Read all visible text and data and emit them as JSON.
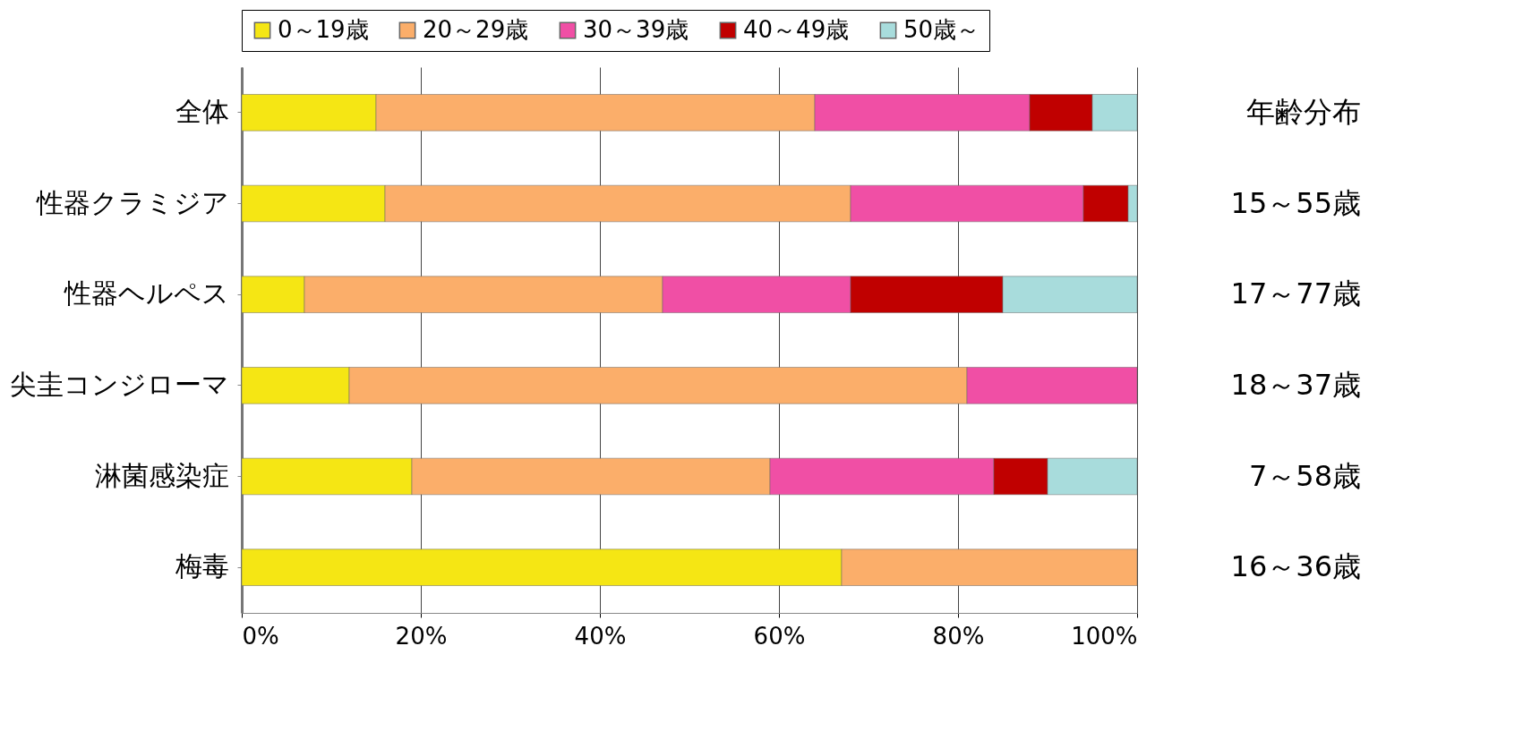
{
  "chart_data": {
    "type": "bar",
    "orientation": "horizontal",
    "stacked": true,
    "categories": [
      "全体",
      "性器クラミジア",
      "性器ヘルペス",
      "尖圭コンジローマ",
      "淋菌感染症",
      "梅毒"
    ],
    "series": [
      {
        "name": "0～19歳",
        "color": "#f5e614",
        "values": [
          15,
          16,
          7,
          12,
          19,
          67
        ]
      },
      {
        "name": "20～29歳",
        "color": "#fbae6a",
        "values": [
          49,
          52,
          40,
          69,
          40,
          33
        ]
      },
      {
        "name": "30～39歳",
        "color": "#f04fa5",
        "values": [
          24,
          26,
          21,
          19,
          25,
          null
        ]
      },
      {
        "name": "40～49歳",
        "color": "#c00000",
        "values": [
          7,
          5,
          17,
          null,
          6,
          null
        ]
      },
      {
        "name": "50歳～",
        "color": "#a8dcdc",
        "values": [
          5,
          1,
          15,
          null,
          10,
          null
        ]
      }
    ],
    "xlim": [
      0,
      100
    ],
    "xticks": [
      {
        "value": 0,
        "label": "0%"
      },
      {
        "value": 20,
        "label": "20%"
      },
      {
        "value": 40,
        "label": "40%"
      },
      {
        "value": 60,
        "label": "60%"
      },
      {
        "value": 80,
        "label": "80%"
      },
      {
        "value": 100,
        "label": "100%"
      }
    ],
    "grid": "x",
    "legend": "top",
    "annotations": [
      "年齢分布",
      "15～55歳",
      "17～77歳",
      "18～37歳",
      "7～58歳",
      "16～36歳"
    ]
  }
}
